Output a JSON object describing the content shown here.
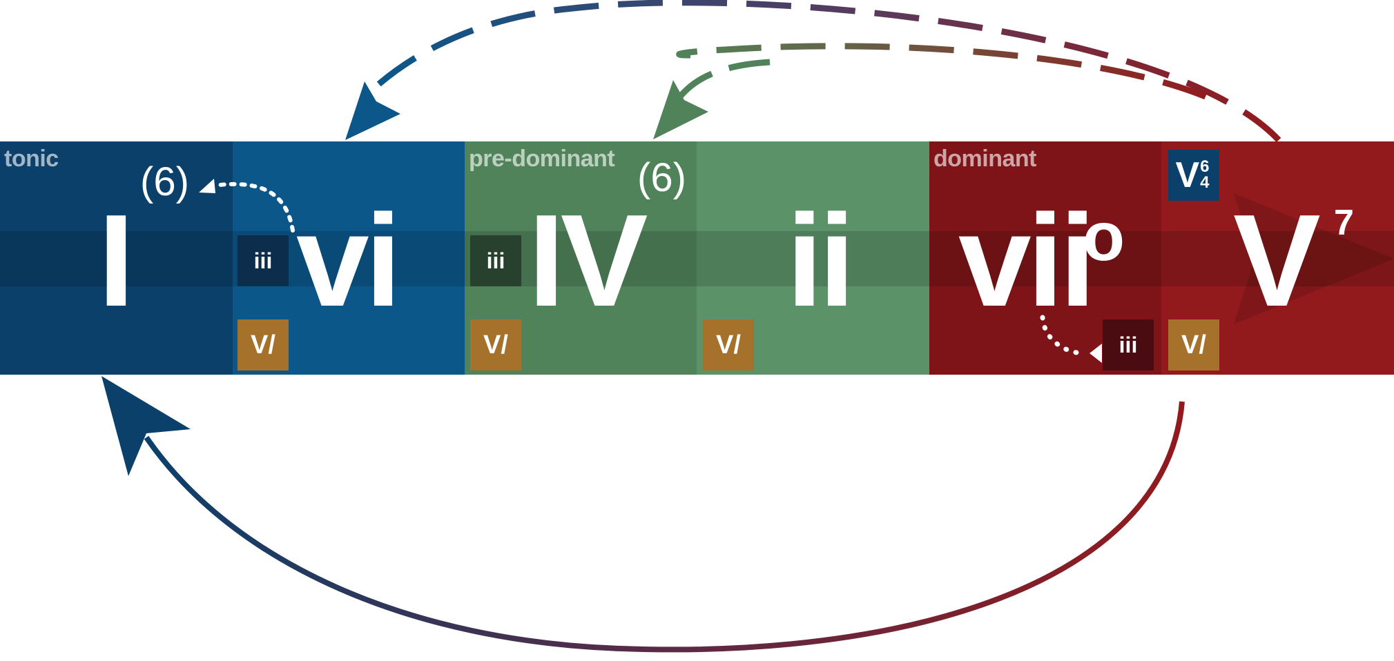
{
  "groups": {
    "tonic": "tonic",
    "predominant": "pre-dominant",
    "dominant": "dominant"
  },
  "chords": {
    "I": "I",
    "vi": "vi",
    "IV": "IV",
    "ii": "ii",
    "viio_root": "vii",
    "viio_dim": "o",
    "V": "V",
    "V_sup": "7"
  },
  "paren_I": "(6)",
  "paren_IV": "(6)",
  "boxes": {
    "iii_1": "iii",
    "iii_2": "iii",
    "iii_3": "iii",
    "vof": "V/"
  },
  "cadential": {
    "root": "V",
    "top": "6",
    "bottom": "4"
  },
  "colors": {
    "tonic_dark": "#0b406b",
    "tonic": "#0b578a",
    "predominant_dark": "#51835a",
    "predominant": "#5b9268",
    "dominant_dark": "#7e1418",
    "dominant": "#921a1d",
    "applied": "#a6722b"
  }
}
